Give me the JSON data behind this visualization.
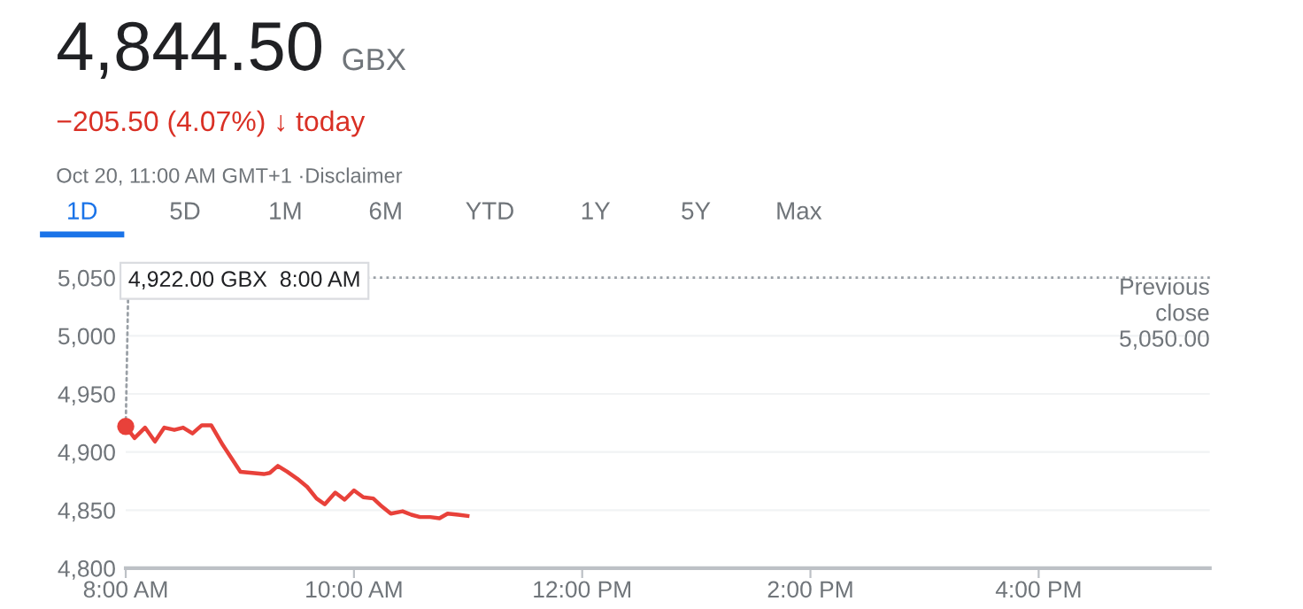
{
  "chart_data": {
    "type": "line",
    "title": "4,844.50",
    "subtitle": "GBX",
    "annotations": [
      "−205.50 (4.07%) ↓ today",
      "Oct 20, 11:00 AM GMT+1 ·Disclaimer",
      "1D",
      "5D",
      "1M",
      "6M",
      "YTD",
      "1Y",
      "5Y",
      "Max",
      {
        "text": "4,922.00 GBX  8:00 AM",
        "x": 8.0,
        "y": 4922
      }
    ],
    "x": [
      8.0,
      8.077,
      8.169,
      8.256,
      8.338,
      8.426,
      8.503,
      8.585,
      8.667,
      8.749,
      8.851,
      9.005,
      9.108,
      9.21,
      9.262,
      9.333,
      9.415,
      9.503,
      9.59,
      9.672,
      9.744,
      9.836,
      9.918,
      10.0,
      10.082,
      10.169,
      10.246,
      10.323,
      10.426,
      10.503,
      10.579,
      10.667,
      10.749,
      10.821,
      10.913,
      10.995
    ],
    "series": [
      {
        "color": "#e8413a",
        "values": [
          4922,
          4912,
          4921,
          4909,
          4921,
          4919,
          4921,
          4916,
          4923,
          4923,
          4906,
          4883,
          4882,
          4881,
          4882,
          4888,
          4883,
          4877,
          4870,
          4860,
          4855,
          4865,
          4859,
          4867,
          4861,
          4860,
          4853,
          4847,
          4849,
          4846,
          4844,
          4844,
          4843,
          4847,
          4846,
          4845
        ]
      }
    ],
    "xlim": [
      8,
      17.5
    ],
    "xticks": [
      {
        "value": 8,
        "label": "8:00 AM"
      },
      {
        "value": 10,
        "label": "10:00 AM"
      },
      {
        "value": 12,
        "label": "12:00 PM"
      },
      {
        "value": 14,
        "label": "2:00 PM"
      },
      {
        "value": 16,
        "label": "4:00 PM"
      }
    ],
    "ylim": [
      4800,
      5050
    ],
    "yticks": [
      {
        "value": 4800,
        "label": "4,800"
      },
      {
        "value": 4850,
        "label": "4,850"
      },
      {
        "value": 4900,
        "label": "4,900"
      },
      {
        "value": 4950,
        "label": "4,950"
      },
      {
        "value": 5000,
        "label": "5,000"
      },
      {
        "value": 5050,
        "label": "5,050"
      }
    ],
    "ref_lines": [
      {
        "axis": "y",
        "value": 5050,
        "label": "Previous\nclose\n5,050.00",
        "color": "#9aa0a6",
        "line_style": "dotted"
      }
    ],
    "grid": "y",
    "marker": "none",
    "line_style": "solid"
  }
}
